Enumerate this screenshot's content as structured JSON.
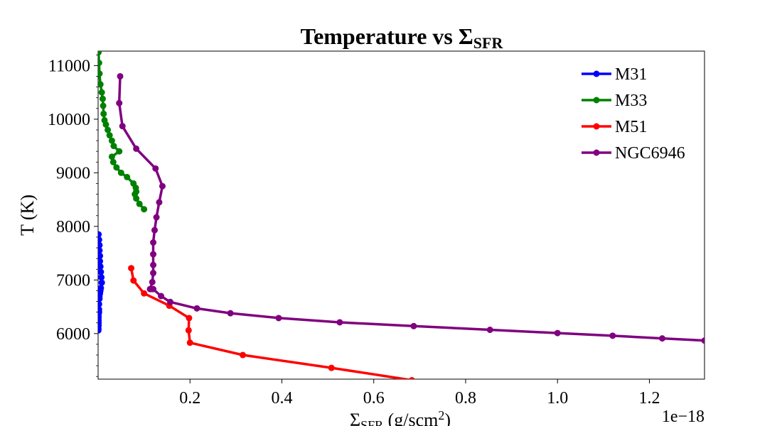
{
  "chart_data": {
    "type": "line",
    "title_main": "Temperature vs Σ",
    "title_sub": "SFR",
    "xlabel_main": "Σ",
    "xlabel_sub": "SFR",
    "xlabel_unit": " (g/scm",
    "xlabel_sup": "2",
    "xlabel_close": ")",
    "ylabel": "T (K)",
    "x_offset_text": "1e−18",
    "x_scale": 1e-18,
    "xlim": [
      0.0,
      1.32
    ],
    "ylim": [
      5150,
      11270
    ],
    "xticks": [
      0.2,
      0.4,
      0.6,
      0.8,
      1.0,
      1.2
    ],
    "xtick_labels": [
      "0.2",
      "0.4",
      "0.6",
      "0.8",
      "1.0",
      "1.2"
    ],
    "yticks": [
      6000,
      7000,
      8000,
      9000,
      10000,
      11000
    ],
    "ytick_labels": [
      "6000",
      "7000",
      "8000",
      "9000",
      "10000",
      "11000"
    ],
    "grid": false,
    "legend_position": "top-right",
    "series": [
      {
        "name": "M31",
        "color": "#0000ff",
        "x": [
          0.001,
          0.002,
          0.003,
          0.003,
          0.004,
          0.004,
          0.005,
          0.006,
          0.007,
          0.008,
          0.006,
          0.005,
          0.004,
          0.003,
          0.003,
          0.002,
          0.002,
          0.002,
          0.001,
          0.001,
          0.001,
          0.001,
          0.001,
          0.0005,
          0.0005,
          0.0005
        ],
        "y": [
          7850,
          7750,
          7650,
          7550,
          7450,
          7350,
          7250,
          7150,
          7050,
          6950,
          6850,
          6800,
          6750,
          6700,
          6650,
          6550,
          6450,
          6400,
          6350,
          6300,
          6250,
          6200,
          6150,
          6100,
          6080,
          6060
        ]
      },
      {
        "name": "M33",
        "color": "#008000",
        "x": [
          0.001,
          0.002,
          0.003,
          0.005,
          0.008,
          0.01,
          0.011,
          0.012,
          0.014,
          0.017,
          0.021,
          0.025,
          0.03,
          0.034,
          0.046,
          0.03,
          0.033,
          0.04,
          0.05,
          0.063,
          0.077,
          0.082,
          0.083,
          0.08,
          0.083,
          0.09,
          0.1
        ],
        "y": [
          11250,
          11050,
          10850,
          10650,
          10500,
          10380,
          10250,
          10100,
          9980,
          9900,
          9800,
          9700,
          9600,
          9500,
          9400,
          9300,
          9200,
          9100,
          9000,
          8920,
          8800,
          8720,
          8650,
          8600,
          8520,
          8420,
          8320
        ]
      },
      {
        "name": "M51",
        "color": "#ff0000",
        "x": [
          0.072,
          0.077,
          0.1,
          0.155,
          0.198,
          0.197,
          0.2,
          0.315,
          0.508,
          0.683
        ],
        "y": [
          7220,
          6990,
          6750,
          6520,
          6290,
          6060,
          5830,
          5600,
          5360,
          5130
        ]
      },
      {
        "name": "NGC6946",
        "color": "#800080",
        "x": [
          0.048,
          0.046,
          0.053,
          0.083,
          0.125,
          0.14,
          0.133,
          0.127,
          0.123,
          0.12,
          0.12,
          0.12,
          0.12,
          0.118,
          0.113,
          0.115,
          0.12,
          0.137,
          0.157,
          0.215,
          0.288,
          0.393,
          0.526,
          0.687,
          0.853,
          1.0,
          1.12,
          1.228,
          1.32
        ],
        "y": [
          10800,
          10300,
          9870,
          9450,
          9080,
          8750,
          8450,
          8170,
          7930,
          7700,
          7480,
          7280,
          7130,
          6960,
          6830,
          6830,
          6830,
          6700,
          6590,
          6470,
          6380,
          6290,
          6210,
          6140,
          6070,
          6010,
          5960,
          5910,
          5870
        ]
      }
    ]
  }
}
